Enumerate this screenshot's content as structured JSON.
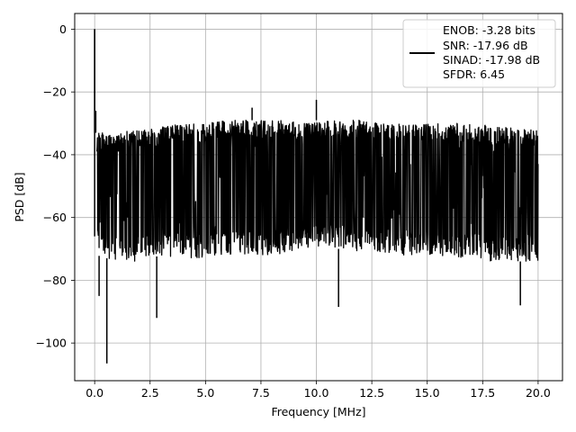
{
  "chart_data": {
    "type": "line",
    "title": "",
    "xlabel": "Frequency [MHz]",
    "ylabel": "PSD [dB]",
    "xlim": [
      -0.9,
      21.1
    ],
    "ylim": [
      -112,
      5
    ],
    "grid": true,
    "x_ticks": [
      0.0,
      2.5,
      5.0,
      7.5,
      10.0,
      12.5,
      15.0,
      17.5,
      20.0
    ],
    "x_tick_labels": [
      "0.0",
      "2.5",
      "5.0",
      "7.5",
      "10.0",
      "12.5",
      "15.0",
      "17.5",
      "20.0"
    ],
    "y_ticks": [
      0,
      -20,
      -40,
      -60,
      -80,
      -100
    ],
    "y_tick_labels": [
      "0",
      "−20",
      "−40",
      "−60",
      "−80",
      "−100"
    ],
    "series": [
      {
        "color": "#000000",
        "noise_envelope": {
          "x": [
            0.1,
            1,
            2,
            3,
            4,
            5,
            6,
            7,
            8,
            9,
            10,
            11,
            12,
            13,
            14,
            15,
            16,
            17,
            18,
            19,
            20
          ],
          "upper": [
            -33,
            -33,
            -32,
            -31,
            -30,
            -30,
            -29,
            -29,
            -29,
            -29,
            -29,
            -29,
            -29,
            -30,
            -30,
            -30,
            -30,
            -30,
            -31,
            -31,
            -32
          ],
          "lower": [
            -72,
            -74,
            -74,
            -72,
            -73,
            -73,
            -72,
            -72,
            -72,
            -71,
            -70,
            -70,
            -71,
            -71,
            -72,
            -72,
            -73,
            -73,
            -74,
            -74,
            -74
          ]
        },
        "peaks": [
          {
            "x": 0.0,
            "y": 0
          },
          {
            "x": 0.05,
            "y": -26
          },
          {
            "x": 7.1,
            "y": -25
          },
          {
            "x": 10.0,
            "y": -22.5
          },
          {
            "x": 0.55,
            "y": -106.5
          },
          {
            "x": 2.8,
            "y": -92
          },
          {
            "x": 0.2,
            "y": -85
          },
          {
            "x": 19.2,
            "y": -88
          },
          {
            "x": 11.0,
            "y": -88.5
          }
        ]
      }
    ],
    "legend": {
      "placement": "top-right",
      "lines": [
        "ENOB: -3.28 bits",
        "SNR: -17.96 dB",
        "SINAD: -17.98 dB",
        "SFDR: 6.45"
      ]
    }
  }
}
